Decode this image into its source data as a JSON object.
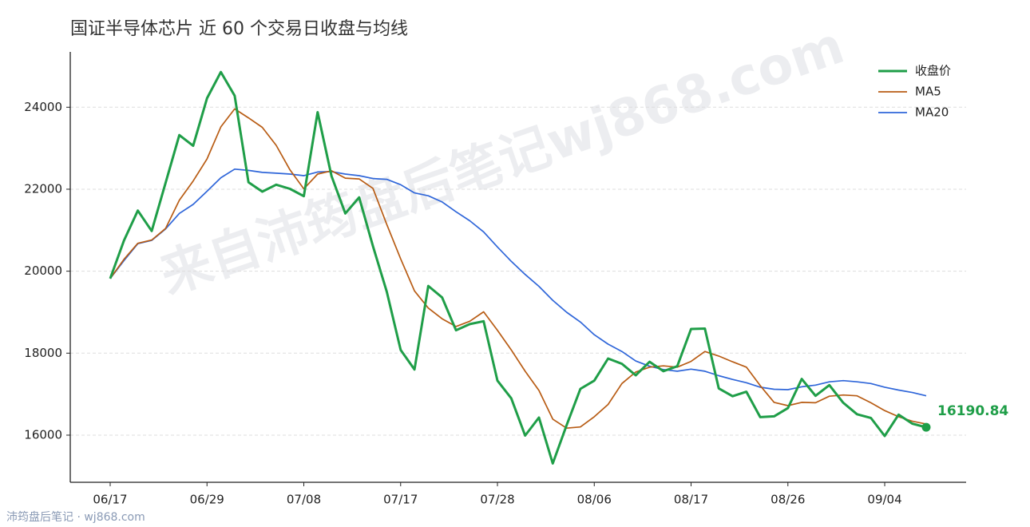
{
  "chart_data": {
    "type": "line",
    "title": "国证半导体芯片 近 60 个交易日收盘与均线",
    "categories": [
      "06/17",
      null,
      null,
      null,
      null,
      null,
      null,
      "06/29",
      null,
      null,
      null,
      null,
      null,
      null,
      "07/08",
      null,
      null,
      null,
      null,
      null,
      null,
      "07/17",
      null,
      null,
      null,
      null,
      null,
      null,
      "07/28",
      null,
      null,
      null,
      null,
      null,
      null,
      "08/06",
      null,
      null,
      null,
      null,
      null,
      null,
      "08/17",
      null,
      null,
      null,
      null,
      null,
      null,
      "08/26",
      null,
      null,
      null,
      null,
      null,
      null,
      "09/04",
      null,
      null,
      null
    ],
    "series": [
      {
        "name": "收盘价",
        "color": "#1f9e48",
        "values": [
          19820,
          20750,
          21480,
          20980,
          22150,
          23320,
          23060,
          24220,
          24860,
          24280,
          22170,
          21940,
          22110,
          22010,
          21830,
          23880,
          22320,
          21410,
          21800,
          20610,
          19500,
          18080,
          17600,
          19640,
          19360,
          18560,
          18710,
          18780,
          17330,
          16900,
          15990,
          16430,
          15310,
          16240,
          17130,
          17330,
          17870,
          17740,
          17460,
          17790,
          17560,
          17680,
          18590,
          18600,
          17140,
          16950,
          17060,
          16440,
          16460,
          16660,
          17370,
          16960,
          17220,
          16790,
          16510,
          16420,
          15980,
          16500,
          16280,
          16190.84
        ]
      },
      {
        "name": "MA5",
        "color": "#b85c14",
        "values": [
          19820,
          20290,
          20680,
          20760,
          21040,
          21730,
          22200,
          22740,
          23520,
          23960,
          23740,
          23510,
          23070,
          22470,
          22010,
          22370,
          22450,
          22270,
          22250,
          22020,
          21140,
          20300,
          19520,
          19100,
          18840,
          18650,
          18780,
          19010,
          18560,
          18080,
          17560,
          17090,
          16390,
          16170,
          16200,
          16450,
          16750,
          17260,
          17540,
          17660,
          17690,
          17660,
          17800,
          18040,
          17930,
          17790,
          17660,
          17210,
          16800,
          16720,
          16800,
          16790,
          16950,
          16980,
          16960,
          16790,
          16600,
          16450,
          16340,
          16270
        ]
      },
      {
        "name": "MA20",
        "color": "#2f66d9",
        "values": [
          19820,
          20260,
          20670,
          20750,
          21030,
          21410,
          21630,
          21950,
          22280,
          22490,
          22460,
          22410,
          22390,
          22370,
          22330,
          22420,
          22430,
          22370,
          22330,
          22260,
          22240,
          22110,
          21910,
          21840,
          21690,
          21450,
          21230,
          20960,
          20590,
          20240,
          19920,
          19630,
          19290,
          19000,
          18760,
          18450,
          18220,
          18040,
          17810,
          17680,
          17600,
          17560,
          17610,
          17560,
          17450,
          17360,
          17280,
          17170,
          17120,
          17110,
          17180,
          17220,
          17300,
          17330,
          17300,
          17260,
          17170,
          17100,
          17040,
          16960
        ]
      }
    ],
    "ylim": [
      14850,
      25350
    ],
    "yticks": [
      16000,
      18000,
      20000,
      22000,
      24000
    ],
    "grid": true,
    "legend": "upper right",
    "watermark": "来自沛筠盘后笔记wj868.com",
    "footer": "沛筠盘后笔记 · wj868.com"
  }
}
